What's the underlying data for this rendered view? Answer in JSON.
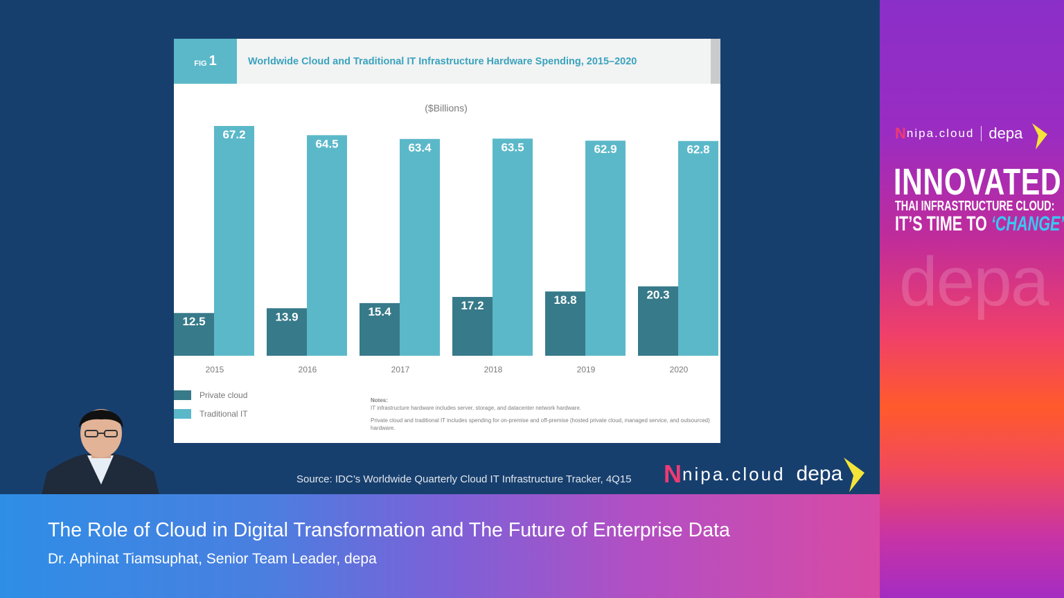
{
  "slide": {
    "fig_label": "FIG",
    "fig_number": "1",
    "title": "Worldwide Cloud and Traditional IT Infrastructure Hardware Spending, 2015–2020",
    "notes_title": "Notes:",
    "note1": "IT infrastructure hardware includes server, storage, and datacenter network hardware.",
    "note2": "Private cloud and traditional IT includes spending for on-premise and off-premise (hosted private cloud, managed service, and outsourced) hardware.",
    "source": "Source: IDC’s Worldwide Quarterly Cloud IT Infrastructure Tracker, 4Q15"
  },
  "chart_data": {
    "type": "bar",
    "title": "Worldwide Cloud and Traditional IT Infrastructure Hardware Spending, 2015–2020",
    "unit_label": "($Billions)",
    "categories": [
      "2015",
      "2016",
      "2017",
      "2018",
      "2019",
      "2020"
    ],
    "series": [
      {
        "name": "Private cloud",
        "color": "#377a8a",
        "values": [
          12.5,
          13.9,
          15.4,
          17.2,
          18.8,
          20.3
        ]
      },
      {
        "name": "Traditional IT",
        "color": "#5bb8c9",
        "values": [
          67.2,
          64.5,
          63.4,
          63.5,
          62.9,
          62.8
        ]
      }
    ],
    "ylim": [
      0,
      67.2
    ],
    "legend_position": "bottom-left",
    "grid": false
  },
  "logos": {
    "nipa_n": "N",
    "nipa_text": "nipa.cloud",
    "depa_text": "depa",
    "watermark": "depa"
  },
  "sidebar": {
    "headline": "INNOVATED",
    "line1": "THAI INFRASTRUCTURE CLOUD:",
    "line2_prefix": "IT’S TIME TO ",
    "line2_emphasis": "‘CHANGE’"
  },
  "lower_third": {
    "title": "The Role of Cloud in Digital Transformation and The Future of Enterprise Data",
    "speaker": "Dr. Aphinat Tiamsuphat, Senior Team Leader, depa"
  },
  "colors": {
    "background": "#173f6e",
    "accent_teal": "#5bb8c9",
    "dark_teal": "#377a8a",
    "brand_pink": "#ee3a73"
  }
}
